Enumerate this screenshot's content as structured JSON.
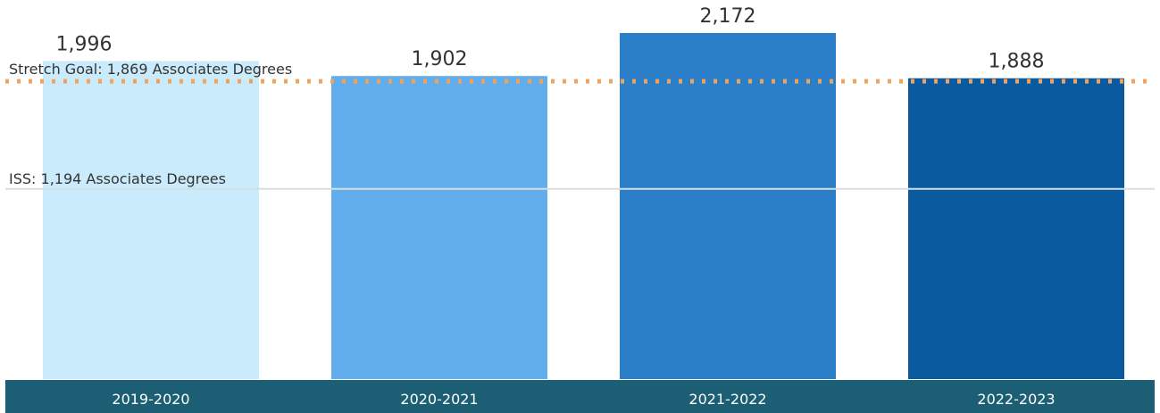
{
  "chart_data": {
    "type": "bar",
    "categories": [
      "2019-2020",
      "2020-2021",
      "2021-2022",
      "2022-2023"
    ],
    "values": [
      1996,
      1902,
      2172,
      1888
    ],
    "data_labels": [
      "1,996",
      "1,902",
      "2,172",
      "1,888"
    ],
    "ylim": [
      0,
      2200
    ],
    "grid": false,
    "reference_lines": [
      {
        "label": "Stretch Goal: 1,869 Associates Degrees",
        "value": 1869,
        "style": "dotted",
        "color": "#f0a35e"
      },
      {
        "label": "ISS: 1,194 Associates Degrees",
        "value": 1194,
        "style": "solid",
        "color": "#d6dde3"
      }
    ],
    "colors": [
      "#c9ebfb",
      "#62aeec",
      "#2a7fc8",
      "#0a5aa0"
    ],
    "axis_band_color": "#1c5e73"
  }
}
